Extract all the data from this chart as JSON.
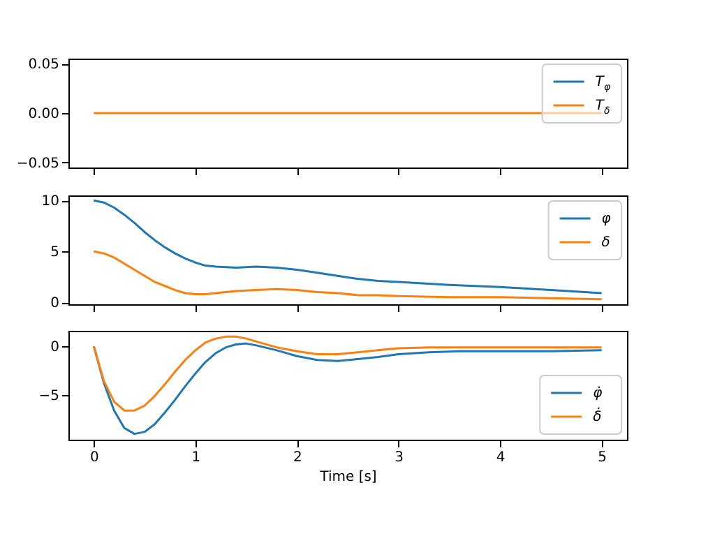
{
  "chart_data": [
    {
      "type": "line",
      "x": [
        0,
        5
      ],
      "series": [
        {
          "name": "T$_{φ}$",
          "color": "#1f77b4",
          "values": [
            null,
            null
          ]
        },
        {
          "name": "T$_{δ}$",
          "color": "#ff7f0e",
          "values": [
            0,
            0
          ]
        }
      ],
      "xlim": [
        -0.25,
        5.25
      ],
      "xticks": [
        0,
        1,
        2,
        3,
        4,
        5
      ],
      "ylim": [
        -0.055,
        0.055
      ],
      "yticks": [
        {
          "value": -0.05,
          "label": "−0.05"
        },
        {
          "value": 0,
          "label": "0.00"
        },
        {
          "value": 0.05,
          "label": "0.05"
        }
      ],
      "tick_labels": "y",
      "legend": "top right",
      "grid": false
    },
    {
      "type": "line",
      "x": [
        0,
        0.1,
        0.2,
        0.3,
        0.4,
        0.5,
        0.6,
        0.7,
        0.8,
        0.9,
        1.0,
        1.1,
        1.2,
        1.4,
        1.6,
        1.8,
        2.0,
        2.2,
        2.4,
        2.6,
        2.8,
        3.0,
        3.5,
        4.0,
        4.5,
        5.0
      ],
      "series": [
        {
          "name": "φ",
          "color": "#1f77b4",
          "values": [
            10,
            9.8,
            9.3,
            8.6,
            7.8,
            6.9,
            6.1,
            5.4,
            4.8,
            4.3,
            3.9,
            3.6,
            3.5,
            3.4,
            3.5,
            3.4,
            3.2,
            2.9,
            2.6,
            2.3,
            2.1,
            2.0,
            1.7,
            1.5,
            1.2,
            0.9
          ]
        },
        {
          "name": "δ",
          "color": "#ff7f0e",
          "values": [
            5,
            4.8,
            4.4,
            3.8,
            3.2,
            2.6,
            2.0,
            1.6,
            1.2,
            0.9,
            0.8,
            0.8,
            0.9,
            1.1,
            1.2,
            1.3,
            1.2,
            1.0,
            0.9,
            0.7,
            0.7,
            0.6,
            0.5,
            0.5,
            0.4,
            0.3
          ]
        }
      ],
      "xlim": [
        -0.25,
        5.25
      ],
      "xticks": [
        0,
        1,
        2,
        3,
        4,
        5
      ],
      "ylim": [
        -0.2,
        10.5
      ],
      "yticks": [
        0,
        5,
        10
      ],
      "tick_labels": "y",
      "legend": "top right",
      "grid": false
    },
    {
      "type": "line",
      "x": [
        0,
        0.1,
        0.2,
        0.3,
        0.4,
        0.5,
        0.6,
        0.7,
        0.8,
        0.9,
        1.0,
        1.1,
        1.2,
        1.3,
        1.4,
        1.5,
        1.6,
        1.8,
        2.0,
        2.2,
        2.4,
        2.6,
        2.8,
        3.0,
        3.3,
        3.6,
        4.0,
        4.5,
        5.0
      ],
      "series": [
        {
          "name": "φ̇",
          "color": "#1f77b4",
          "values": [
            0,
            -3.8,
            -6.6,
            -8.4,
            -9.0,
            -8.8,
            -8.0,
            -6.8,
            -5.5,
            -4.1,
            -2.8,
            -1.6,
            -0.7,
            -0.1,
            0.2,
            0.3,
            0.1,
            -0.4,
            -1.0,
            -1.4,
            -1.5,
            -1.3,
            -1.1,
            -0.8,
            -0.6,
            -0.5,
            -0.5,
            -0.5,
            -0.4
          ]
        },
        {
          "name": "δ̇",
          "color": "#ff7f0e",
          "values": [
            0,
            -3.6,
            -5.7,
            -6.6,
            -6.6,
            -6.1,
            -5.1,
            -3.9,
            -2.6,
            -1.4,
            -0.4,
            0.4,
            0.8,
            1.0,
            1.0,
            0.8,
            0.5,
            -0.1,
            -0.5,
            -0.8,
            -0.8,
            -0.6,
            -0.4,
            -0.2,
            -0.1,
            -0.1,
            -0.1,
            -0.1,
            -0.1
          ]
        }
      ],
      "xlim": [
        -0.25,
        5.25
      ],
      "xticks": [
        0,
        1,
        2,
        3,
        4,
        5
      ],
      "ylim": [
        -9.6,
        1.6
      ],
      "yticks": [
        -5,
        0
      ],
      "xlabel": "Time [s]",
      "legend": "bottom right",
      "grid": false
    }
  ]
}
